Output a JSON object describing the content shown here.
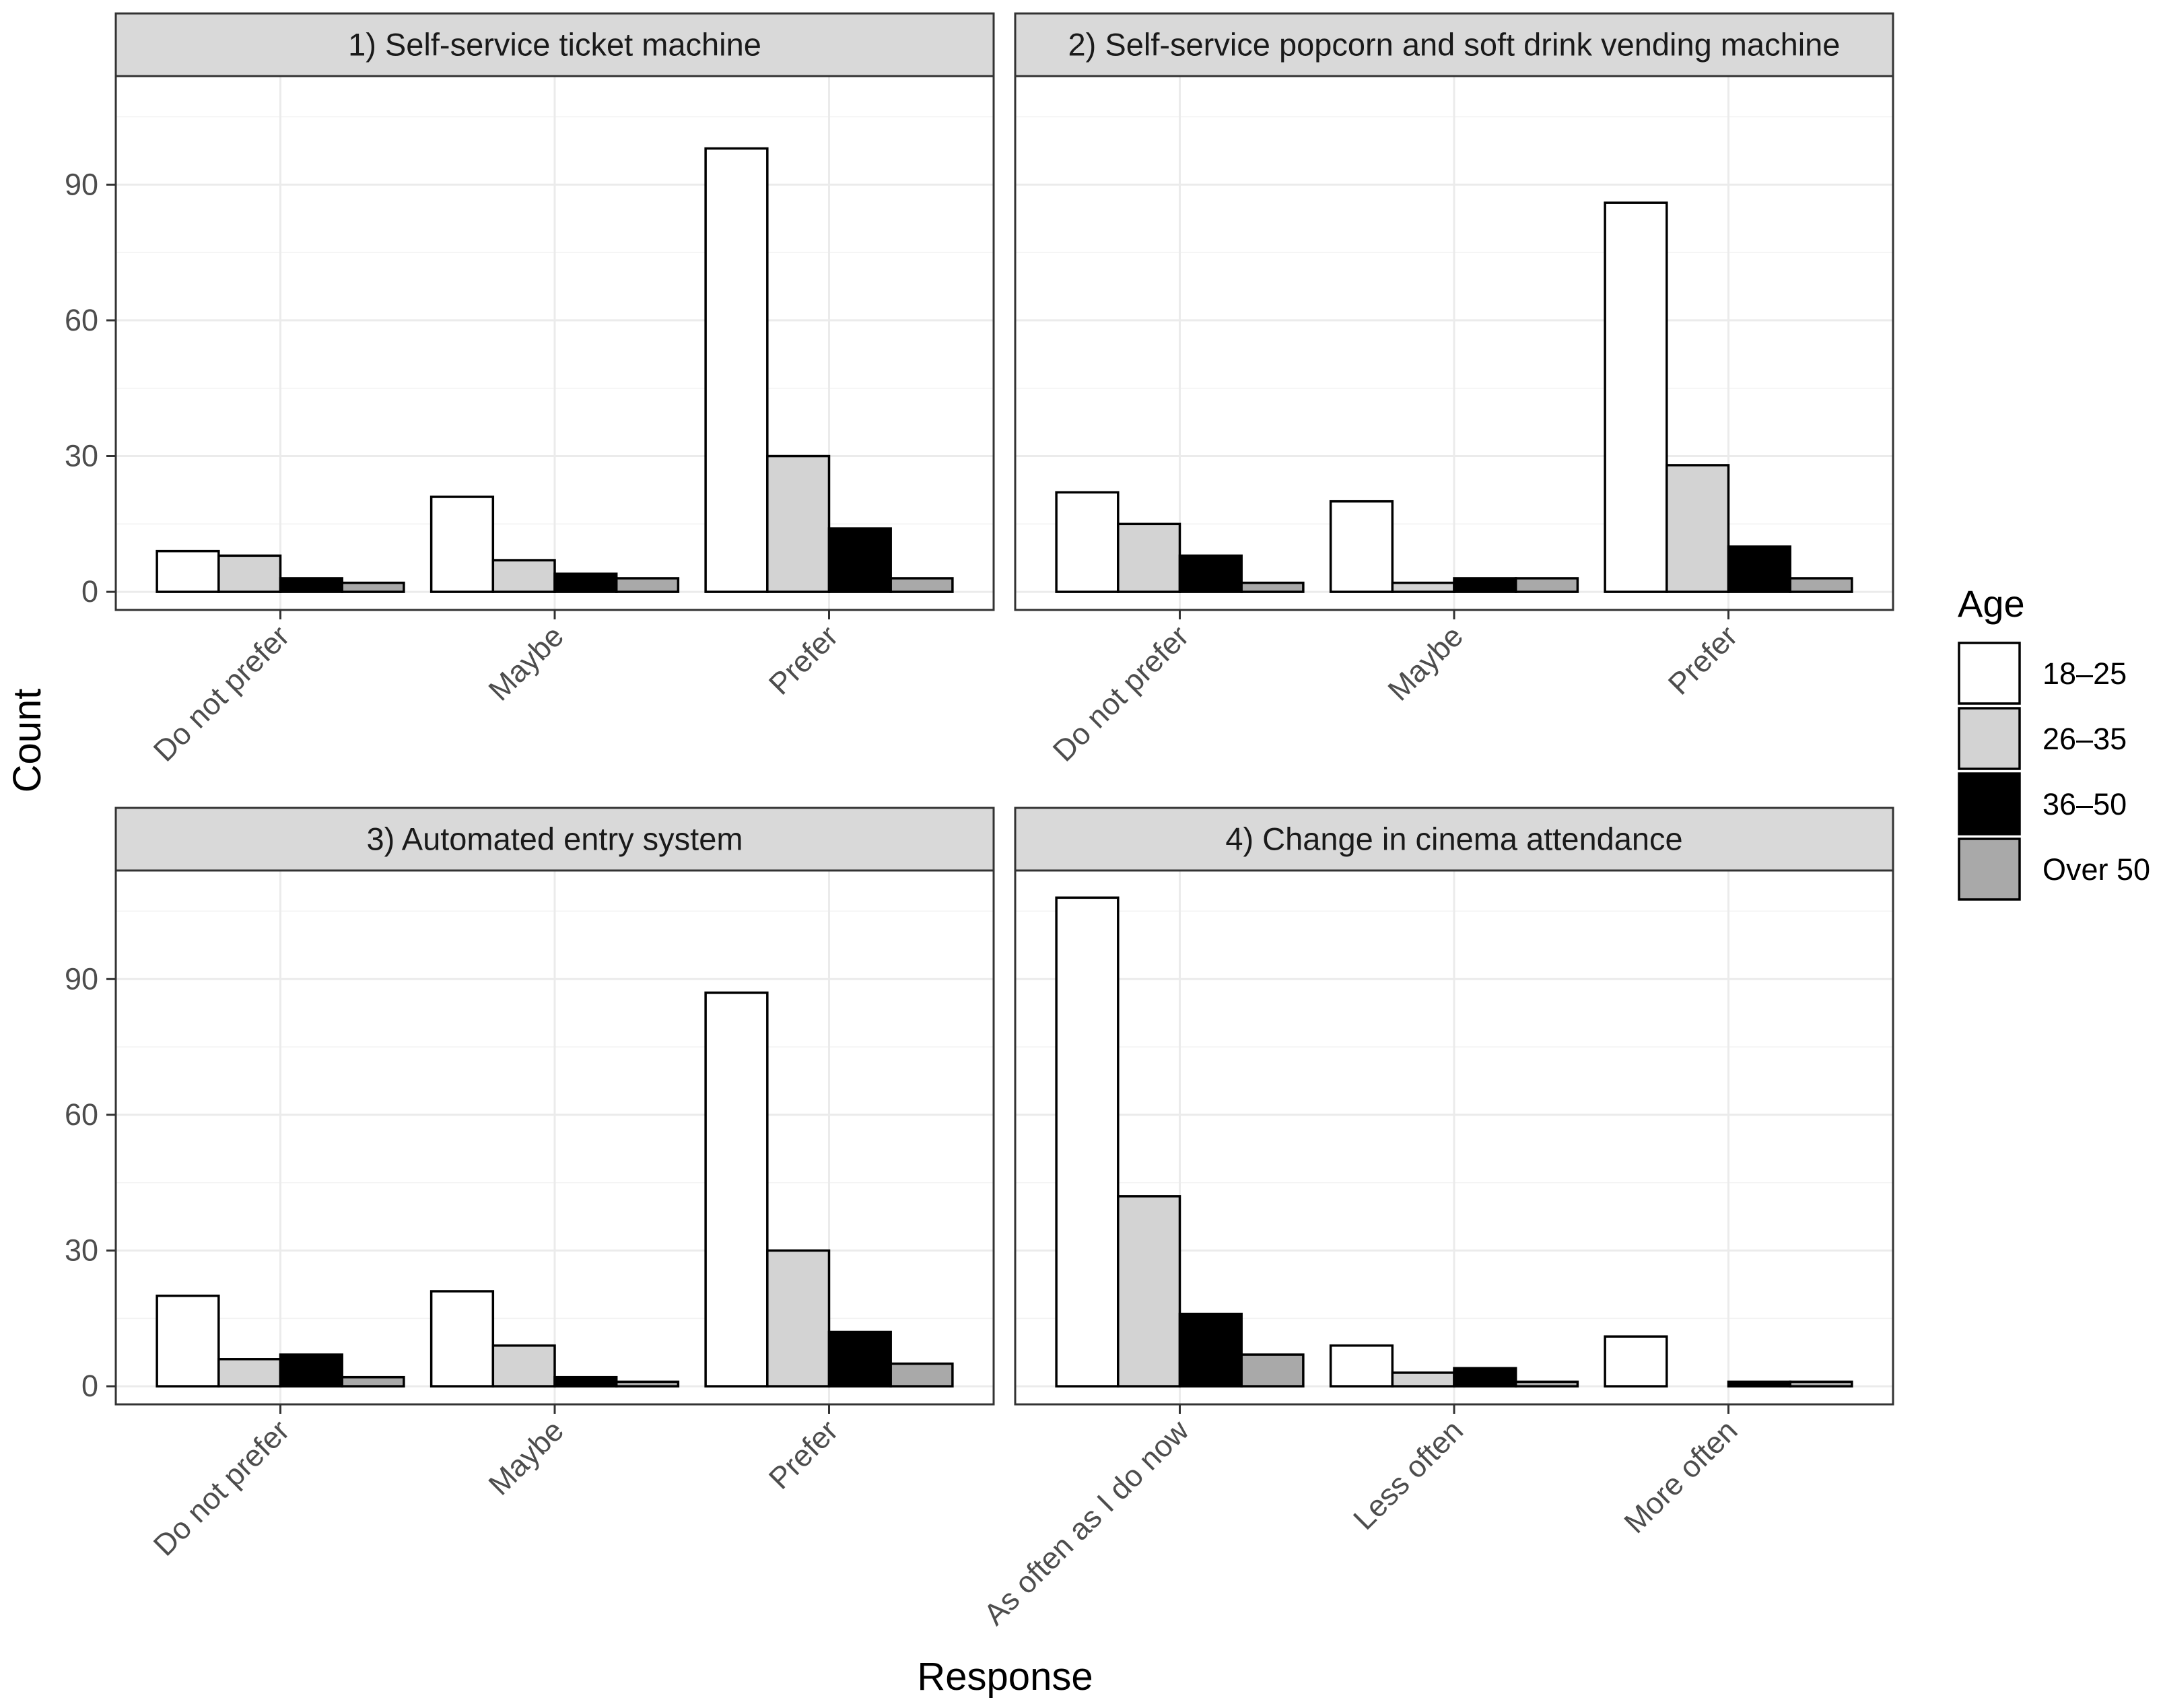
{
  "chart_data": {
    "type": "bar",
    "xlabel": "Response",
    "ylabel": "Count",
    "ylim": [
      -4,
      114
    ],
    "yticks": [
      0,
      30,
      60,
      90
    ],
    "grid": true,
    "legend": {
      "title": "Age",
      "placement": "right",
      "entries": [
        {
          "name": "18–25",
          "color": "#ffffff"
        },
        {
          "name": "26–35",
          "color": "#d3d3d3"
        },
        {
          "name": "36–50",
          "color": "#000000"
        },
        {
          "name": "Over 50",
          "color": "#a9a9a9"
        }
      ]
    },
    "panels": [
      {
        "title": "1) Self-service ticket machine",
        "categories": [
          "Do not prefer",
          "Maybe",
          "Prefer"
        ],
        "series": [
          {
            "name": "18–25",
            "values": [
              9,
              21,
              98
            ]
          },
          {
            "name": "26–35",
            "values": [
              8,
              7,
              30
            ]
          },
          {
            "name": "36–50",
            "values": [
              3,
              4,
              14
            ]
          },
          {
            "name": "Over 50",
            "values": [
              2,
              3,
              3
            ]
          }
        ]
      },
      {
        "title": "2) Self-service popcorn and soft drink vending machine",
        "categories": [
          "Do not prefer",
          "Maybe",
          "Prefer"
        ],
        "series": [
          {
            "name": "18–25",
            "values": [
              22,
              20,
              86
            ]
          },
          {
            "name": "26–35",
            "values": [
              15,
              2,
              28
            ]
          },
          {
            "name": "36–50",
            "values": [
              8,
              3,
              10
            ]
          },
          {
            "name": "Over 50",
            "values": [
              2,
              3,
              3
            ]
          }
        ]
      },
      {
        "title": "3) Automated entry system",
        "categories": [
          "Do not prefer",
          "Maybe",
          "Prefer"
        ],
        "series": [
          {
            "name": "18–25",
            "values": [
              20,
              21,
              87
            ]
          },
          {
            "name": "26–35",
            "values": [
              6,
              9,
              30
            ]
          },
          {
            "name": "36–50",
            "values": [
              7,
              2,
              12
            ]
          },
          {
            "name": "Over 50",
            "values": [
              2,
              1,
              5
            ]
          }
        ]
      },
      {
        "title": "4) Change in cinema attendance",
        "categories": [
          "As often as I do now",
          "Less often",
          "More often"
        ],
        "series": [
          {
            "name": "18–25",
            "values": [
              108,
              9,
              11
            ]
          },
          {
            "name": "26–35",
            "values": [
              42,
              3,
              0
            ]
          },
          {
            "name": "36–50",
            "values": [
              16,
              4,
              1
            ]
          },
          {
            "name": "Over 50",
            "values": [
              7,
              1,
              1
            ]
          }
        ]
      }
    ]
  }
}
